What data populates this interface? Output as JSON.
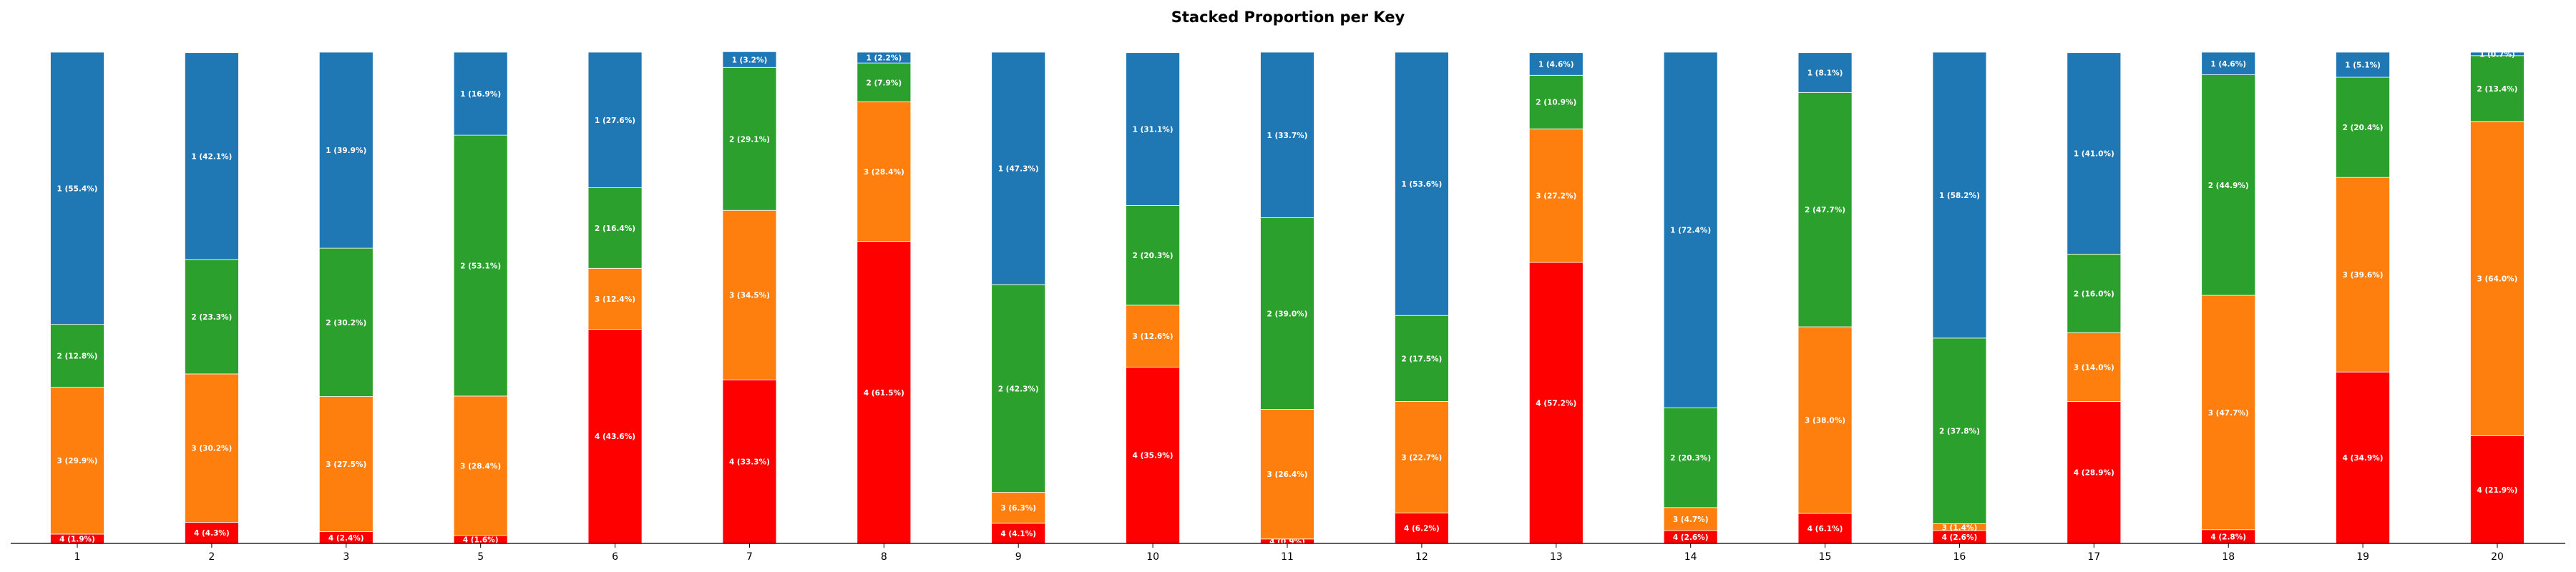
{
  "chart_data": {
    "type": "bar",
    "stacked": true,
    "title": "Stacked Proportion per Key",
    "xlabel": "",
    "ylabel": "",
    "ylim": [
      0,
      100
    ],
    "grid": false,
    "legend": "none",
    "categories": [
      "1",
      "2",
      "3",
      "5",
      "6",
      "7",
      "8",
      "9",
      "10",
      "11",
      "12",
      "13",
      "14",
      "15",
      "16",
      "17",
      "18",
      "19",
      "20"
    ],
    "series": [
      {
        "key": "4",
        "color": "#ff0000",
        "values": [
          1.9,
          4.3,
          2.4,
          1.6,
          43.6,
          33.3,
          61.5,
          4.1,
          35.9,
          0.9,
          6.2,
          57.2,
          2.6,
          6.1,
          2.6,
          28.9,
          2.8,
          34.9,
          21.9
        ],
        "labels": [
          "4 (1.9%)",
          "4 (4.3%)",
          "4 (2.4%)",
          "4 (1.6%)",
          "4 (43.6%)",
          "4 (33.3%)",
          "4 (61.5%)",
          "4 (4.1%)",
          "4 (35.9%)",
          "4 (0.9%)",
          "4 (6.2%)",
          "4 (57.2%)",
          "4 (2.6%)",
          "4 (6.1%)",
          "4 (2.6%)",
          "4 (28.9%)",
          "4 (2.8%)",
          "4 (34.9%)",
          "4 (21.9%)"
        ]
      },
      {
        "key": "3",
        "color": "#ff7f0e",
        "values": [
          29.9,
          30.2,
          27.5,
          28.4,
          12.4,
          34.5,
          28.4,
          6.3,
          12.6,
          26.4,
          22.7,
          27.2,
          4.7,
          38.0,
          1.4,
          14.0,
          47.7,
          39.6,
          64.0
        ],
        "labels": [
          "3 (29.9%)",
          "3 (30.2%)",
          "3 (27.5%)",
          "3 (28.4%)",
          "3 (12.4%)",
          "3 (34.5%)",
          "3 (28.4%)",
          "3 (6.3%)",
          "3 (12.6%)",
          "3 (26.4%)",
          "3 (22.7%)",
          "3 (27.2%)",
          "3 (4.7%)",
          "3 (38.0%)",
          "3 (1.4%)",
          "3 (14.0%)",
          "3 (47.7%)",
          "3 (39.6%)",
          "3 (64.0%)"
        ]
      },
      {
        "key": "2",
        "color": "#2ca02c",
        "values": [
          12.8,
          23.3,
          30.2,
          53.1,
          16.4,
          29.1,
          7.9,
          42.3,
          20.3,
          39.0,
          17.5,
          10.9,
          20.3,
          47.7,
          37.8,
          16.0,
          44.9,
          20.4,
          13.4
        ],
        "labels": [
          "2 (12.8%)",
          "2 (23.3%)",
          "2 (30.2%)",
          "2 (53.1%)",
          "2 (16.4%)",
          "2 (29.1%)",
          "2 (7.9%)",
          "2 (42.3%)",
          "2 (20.3%)",
          "2 (39.0%)",
          "2 (17.5%)",
          "2 (10.9%)",
          "2 (20.3%)",
          "2 (47.7%)",
          "2 (37.8%)",
          "2 (16.0%)",
          "2 (44.9%)",
          "2 (20.4%)",
          "2 (13.4%)"
        ]
      },
      {
        "key": "1",
        "color": "#1f77b4",
        "values": [
          55.4,
          42.1,
          39.9,
          16.9,
          27.6,
          3.2,
          2.2,
          47.3,
          31.1,
          33.7,
          53.6,
          4.6,
          72.4,
          8.1,
          58.2,
          41.0,
          4.6,
          5.1,
          0.7
        ],
        "labels": [
          "1 (55.4%)",
          "1 (42.1%)",
          "1 (39.9%)",
          "1 (16.9%)",
          "1 (27.6%)",
          "1 (3.2%)",
          "1 (2.2%)",
          "1 (47.3%)",
          "1 (31.1%)",
          "1 (33.7%)",
          "1 (53.6%)",
          "1 (4.6%)",
          "1 (72.4%)",
          "1 (8.1%)",
          "1 (58.2%)",
          "1 (41.0%)",
          "1 (4.6%)",
          "1 (5.1%)",
          "1 (0.7%)"
        ]
      }
    ]
  }
}
